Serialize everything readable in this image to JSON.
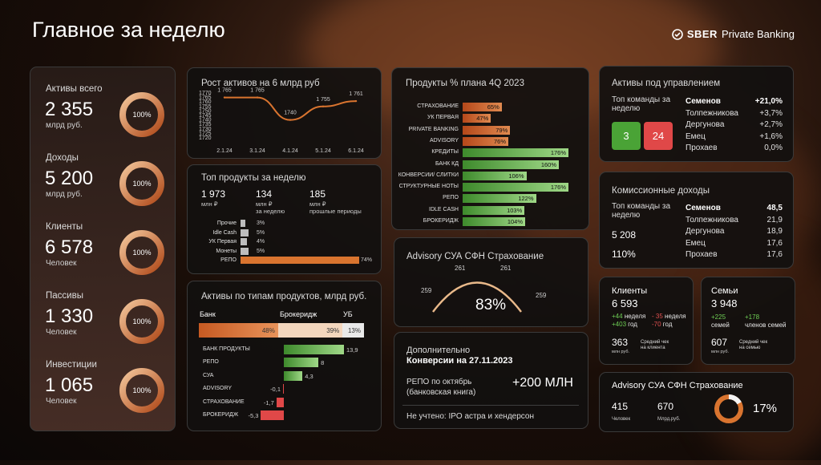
{
  "header": {
    "title": "Главное за неделю",
    "logo_brand": "SBER",
    "logo_text": "Private Banking"
  },
  "kpis": [
    {
      "label": "Активы всего",
      "value": "2 355",
      "unit": "млрд руб.",
      "ring": "100%"
    },
    {
      "label": "Доходы",
      "value": "5 200",
      "unit": "млрд руб.",
      "ring": "100%"
    },
    {
      "label": "Клиенты",
      "value": "6 578",
      "unit": "Человек",
      "ring": "100%"
    },
    {
      "label": "Пассивы",
      "value": "1 330",
      "unit": "Человек",
      "ring": "100%"
    },
    {
      "label": "Инвестиции",
      "value": "1 065",
      "unit": "Человек",
      "ring": "100%"
    }
  ],
  "growth": {
    "title": "Рост активов на 6 млрд руб",
    "y_ticks": [
      "1770",
      "1765",
      "1760",
      "1755",
      "1750",
      "1745",
      "1740",
      "1735",
      "1730",
      "1725",
      "1720"
    ],
    "points": [
      {
        "x": "2.1.24",
        "y": "1 765"
      },
      {
        "x": "3.1.24",
        "y": "1 765"
      },
      {
        "x": "4.1.24",
        "y": "1740"
      },
      {
        "x": "5.1.24",
        "y": "1 755"
      },
      {
        "x": "6.1.24",
        "y": "1 761"
      }
    ]
  },
  "top_products": {
    "title": "Топ продукты за неделю",
    "stats": [
      {
        "value": "1 973",
        "label": "млн ₽"
      },
      {
        "value": "134",
        "label": "млн ₽\nза неделю"
      },
      {
        "value": "185",
        "label": "млн ₽\nпрошлые периоды"
      }
    ],
    "rows": [
      {
        "name": "Прочие",
        "pct": "3%",
        "v": 3
      },
      {
        "name": "Idle Cash",
        "pct": "5%",
        "v": 5
      },
      {
        "name": "УК Первая",
        "pct": "4%",
        "v": 4
      },
      {
        "name": "Монеты",
        "pct": "5%",
        "v": 5
      },
      {
        "name": "РЕПО",
        "pct": "74%",
        "v": 74
      }
    ]
  },
  "by_type": {
    "title": "Активы по типам продуктов, млрд руб.",
    "stack_labels": [
      "Банк",
      "Брокеридж",
      "УБ"
    ],
    "stack": [
      {
        "pct": "48%",
        "v": 48
      },
      {
        "pct": "39%",
        "v": 39
      },
      {
        "pct": "13%",
        "v": 13
      }
    ],
    "rows": [
      {
        "name": "БАНК ПРОДУКТЫ",
        "value": "13,9",
        "v": 13.9
      },
      {
        "name": "РЕПО",
        "value": "8",
        "v": 8
      },
      {
        "name": "СУА",
        "value": "4,3",
        "v": 4.3
      },
      {
        "name": "ADVISORY",
        "value": "-0,1",
        "v": -0.1
      },
      {
        "name": "СТРАХОВАНИЕ",
        "value": "-1,7",
        "v": -1.7
      },
      {
        "name": "БРОКЕРИДЖ",
        "value": "-5,3",
        "v": -5.3
      }
    ]
  },
  "plan": {
    "title": "Продукты % плана 4Q 2023",
    "rows": [
      {
        "name": "СТРАХОВАНИЕ",
        "pct": "65%",
        "v": 65
      },
      {
        "name": "УК ПЕРВАЯ",
        "pct": "47%",
        "v": 47
      },
      {
        "name": "PRIVATE BANKING",
        "pct": "79%",
        "v": 79
      },
      {
        "name": "ADVISORY",
        "pct": "76%",
        "v": 76
      },
      {
        "name": "КРЕДИТЫ",
        "pct": "176%",
        "v": 176
      },
      {
        "name": "БАНК КД",
        "pct": "160%",
        "v": 160
      },
      {
        "name": "КОНВЕРСИИ/ СЛИТКИ",
        "pct": "106%",
        "v": 106
      },
      {
        "name": "СТРУКТУРНЫЕ НОТЫ",
        "pct": "176%",
        "v": 176
      },
      {
        "name": "РЕПО",
        "pct": "122%",
        "v": 122
      },
      {
        "name": "IDLE CASH",
        "pct": "103%",
        "v": 103
      },
      {
        "name": "БРОКЕРИДЖ",
        "pct": "104%",
        "v": 104
      }
    ]
  },
  "advisory": {
    "title": "Advisory СУА СФН Страхование",
    "left": "259",
    "top_left": "261",
    "top_right": "261",
    "right": "259",
    "center": "83%"
  },
  "extra": {
    "title": "Дополнительно",
    "subtitle": "Конверсии на 27.11.2023",
    "repo_label": "РЕПО по октябрь\n(банковская книга)",
    "repo_value": "+200 МЛН",
    "note": "Не учтено:  IPO астра и хендерсон"
  },
  "aum": {
    "title": "Активы под управлением",
    "top_label": "Топ команды за неделю",
    "green": "3",
    "red": "24",
    "rows": [
      {
        "name": "Семенов",
        "value": "+21,0%"
      },
      {
        "name": "Толпежникова",
        "value": "+3,7%"
      },
      {
        "name": "Дергунова",
        "value": "+2,7%"
      },
      {
        "name": "Емец",
        "value": "+1,6%"
      },
      {
        "name": "Прохаев",
        "value": "0,0%"
      }
    ]
  },
  "commission": {
    "title": "Комиссионные доходы",
    "top_label": "Топ команды за неделю",
    "value": "5 208",
    "pct": "110%",
    "rows": [
      {
        "name": "Семенов",
        "value": "48,5"
      },
      {
        "name": "Толпежникова",
        "value": "21,9"
      },
      {
        "name": "Дергунова",
        "value": "18,9"
      },
      {
        "name": "Емец",
        "value": "17,6"
      },
      {
        "name": "Прохаев",
        "value": "17,6"
      }
    ]
  },
  "clients": {
    "title": "Клиенты",
    "value": "6 593",
    "week_new": "+44",
    "week_label": "неделя",
    "year_new": "+403",
    "year_label": "год",
    "week_lost": "- 35",
    "week_label2": "неделя",
    "year_lost": "-70",
    "year_label2": "год",
    "check": "363",
    "check_unit": "млн руб.",
    "check_label": "Средний чек\nна клиента"
  },
  "families": {
    "title": "Семьи",
    "value": "3 948",
    "a": "+225",
    "a_label": "семей",
    "b": "+178",
    "b_label": "членов семей",
    "check": "607",
    "check_unit": "млн руб.",
    "check_label": "Средний чек\nна семью"
  },
  "advisory2": {
    "title": "Advisory СУА СФН Страхование",
    "v1": "415",
    "l1": "Человек",
    "v2": "670",
    "l2": "Млрд.руб.",
    "pct": "17%",
    "ring": 17
  },
  "colors": {
    "accent": "#d9742f",
    "green": "#4aa336",
    "red": "#e04848"
  }
}
